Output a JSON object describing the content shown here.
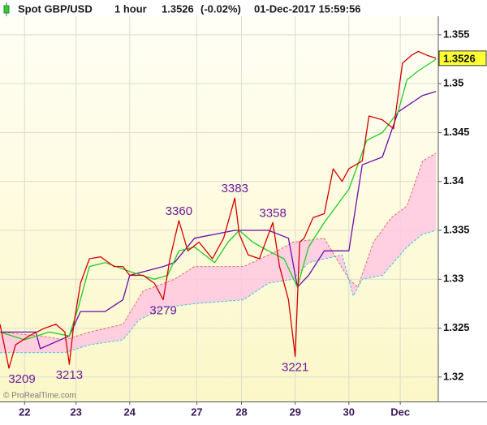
{
  "chart_data": {
    "type": "line",
    "instrument": "Spot GBP/USD",
    "timeframe": "1 hour",
    "last_price": 1.3526,
    "change": "(-0.02%)",
    "timestamp": "01-Dec-2017 15:59:56",
    "credit": "© ProRealTime.com",
    "xlim": [
      0,
      196
    ],
    "ylim": [
      1.3175,
      1.3569
    ],
    "yticks": [
      1.32,
      1.325,
      1.33,
      1.335,
      1.34,
      1.345,
      1.35,
      1.355
    ],
    "xticks": [
      {
        "value": 11,
        "label": "22"
      },
      {
        "value": 34,
        "label": "23"
      },
      {
        "value": 58,
        "label": "24"
      },
      {
        "value": 88,
        "label": "27"
      },
      {
        "value": 108,
        "label": "28"
      },
      {
        "value": 132,
        "label": "29"
      },
      {
        "value": 156,
        "label": "30"
      },
      {
        "value": 179,
        "label": "Dec"
      }
    ],
    "grid": true,
    "cloud": {
      "color": "#ffc8e2",
      "upper": {
        "color": "#e06a6a",
        "x": [
          0,
          18,
          29,
          40,
          55,
          64,
          78,
          87,
          109,
          124,
          131,
          145,
          156,
          160,
          167,
          175,
          182,
          189,
          195
        ],
        "values": [
          1.3246,
          1.3242,
          1.3238,
          1.3246,
          1.3254,
          1.3288,
          1.33,
          1.3313,
          1.3313,
          1.3329,
          1.3338,
          1.3342,
          1.33,
          1.3292,
          1.3338,
          1.3363,
          1.3375,
          1.3421,
          1.3429
        ]
      },
      "lower": {
        "color": "#3fbfe0",
        "x": [
          0,
          18,
          29,
          40,
          55,
          62,
          73,
          87,
          109,
          120,
          131,
          138,
          153,
          158,
          162,
          171,
          182,
          189,
          195
        ],
        "values": [
          1.3225,
          1.3225,
          1.3225,
          1.3233,
          1.3238,
          1.3258,
          1.3271,
          1.3275,
          1.3279,
          1.3296,
          1.33,
          1.3317,
          1.3325,
          1.3283,
          1.33,
          1.3304,
          1.3333,
          1.3346,
          1.335
        ]
      }
    },
    "series": [
      {
        "color": "#6a0dad",
        "x": [
          0,
          16,
          18,
          31,
          36,
          47,
          55,
          58,
          73,
          78,
          87,
          105,
          120,
          129,
          133,
          138,
          145,
          156,
          162,
          171,
          178,
          189,
          195
        ],
        "values": [
          1.3246,
          1.3246,
          1.3229,
          1.3242,
          1.3267,
          1.3267,
          1.3279,
          1.3304,
          1.3313,
          1.3317,
          1.3342,
          1.335,
          1.335,
          1.3342,
          1.3292,
          1.3304,
          1.3329,
          1.3329,
          1.3417,
          1.3425,
          1.3471,
          1.3488,
          1.3492
        ]
      },
      {
        "color": "#22cc22",
        "x": [
          0,
          11,
          22,
          31,
          35,
          40,
          47,
          58,
          69,
          75,
          80,
          87,
          96,
          102,
          107,
          113,
          120,
          127,
          133,
          138,
          145,
          156,
          164,
          171,
          178,
          182,
          187,
          195
        ],
        "values": [
          1.3246,
          1.3238,
          1.3246,
          1.3242,
          1.3271,
          1.3313,
          1.3317,
          1.3308,
          1.33,
          1.3304,
          1.3329,
          1.3333,
          1.3317,
          1.3338,
          1.335,
          1.3338,
          1.3329,
          1.3321,
          1.3292,
          1.3333,
          1.3358,
          1.3392,
          1.3442,
          1.345,
          1.3471,
          1.3504,
          1.3513,
          1.3525
        ]
      },
      {
        "color": "#d40000",
        "x": [
          0,
          4,
          7,
          13,
          20,
          25,
          29,
          31,
          33,
          36,
          40,
          45,
          51,
          55,
          58,
          64,
          69,
          73,
          76,
          80,
          84,
          89,
          95,
          100,
          105,
          107,
          111,
          116,
          122,
          125,
          129,
          132,
          134,
          136,
          140,
          145,
          149,
          153,
          156,
          162,
          165,
          171,
          176,
          180,
          184,
          187,
          191,
          195
        ],
        "values": [
          1.3254,
          1.3209,
          1.3233,
          1.3242,
          1.325,
          1.3254,
          1.3246,
          1.3213,
          1.3254,
          1.3296,
          1.3321,
          1.3323,
          1.3313,
          1.3313,
          1.3304,
          1.3304,
          1.3296,
          1.3279,
          1.3321,
          1.336,
          1.3329,
          1.3338,
          1.3321,
          1.3342,
          1.3383,
          1.3346,
          1.3325,
          1.3321,
          1.3358,
          1.3313,
          1.3279,
          1.3221,
          1.3338,
          1.3342,
          1.3363,
          1.3367,
          1.3413,
          1.34,
          1.3413,
          1.3421,
          1.3467,
          1.3463,
          1.3454,
          1.3521,
          1.3529,
          1.3533,
          1.3529,
          1.3526
        ]
      }
    ],
    "annotations": [
      {
        "text": "3209",
        "x": 4,
        "y": 1.3209
      },
      {
        "text": "3213",
        "x": 31,
        "y": 1.3213
      },
      {
        "text": "3279",
        "x": 73,
        "y": 1.3279
      },
      {
        "text": "3360",
        "x": 80,
        "y": 1.336
      },
      {
        "text": "3383",
        "x": 105,
        "y": 1.3383
      },
      {
        "text": "3358",
        "x": 122,
        "y": 1.3358
      },
      {
        "text": "3221",
        "x": 132,
        "y": 1.3221
      }
    ]
  }
}
